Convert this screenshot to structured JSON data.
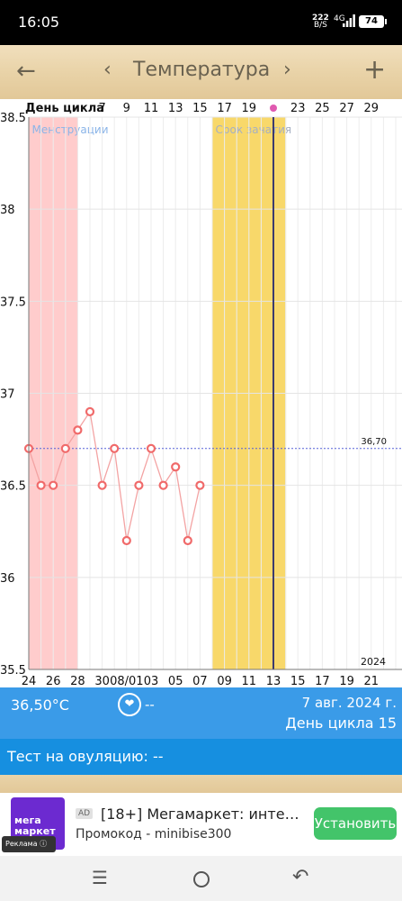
{
  "status_bar": {
    "time": "16:05",
    "net_speed_value": "222",
    "net_speed_unit": "B/S",
    "network": "4G",
    "battery": "74"
  },
  "app_bar": {
    "title": "Температура",
    "back_icon": "arrow-left-icon",
    "prev_icon": "chevron-left-icon",
    "next_icon": "chevron-right-icon",
    "add_icon": "plus-icon"
  },
  "chart_data": {
    "type": "line",
    "top_axis_label": "День цикла",
    "cycle_day_ticks": [
      "7",
      "9",
      "11",
      "13",
      "15",
      "17",
      "19",
      "",
      "23",
      "25",
      "27",
      "29"
    ],
    "x_date_ticks": [
      "24",
      "26",
      "28",
      "30",
      "08/01",
      "03",
      "05",
      "07",
      "09",
      "11",
      "13",
      "15",
      "17",
      "19",
      "21"
    ],
    "y_ticks": [
      "38.5",
      "38",
      "37.5",
      "37",
      "36.5",
      "36",
      "35.5"
    ],
    "ylim": [
      35.5,
      38.5
    ],
    "year_label": "2024",
    "reference_line": {
      "value": 36.7,
      "label": "36,70",
      "color": "#5560d8"
    },
    "zones": [
      {
        "label": "Менструации",
        "from_day": 1,
        "to_day": 5,
        "color": "#ffcccc"
      },
      {
        "label": "Срок зачатия",
        "from_day": 16,
        "to_day": 22,
        "color": "#f8d86a"
      }
    ],
    "ovulation_day": 21,
    "series": [
      {
        "color": "#f06a6a",
        "x_days": [
          1,
          2,
          3,
          4,
          5,
          6,
          7,
          8,
          9,
          10,
          11,
          12,
          13,
          14,
          15
        ],
        "values": [
          36.7,
          36.5,
          36.5,
          36.7,
          36.8,
          36.9,
          36.5,
          36.7,
          36.2,
          36.5,
          36.7,
          36.5,
          36.6,
          36.2,
          36.5
        ]
      }
    ]
  },
  "info": {
    "temperature": "36,50°C",
    "heart_icon": "heart-icon",
    "heart_value": "--",
    "date": "7 авг. 2024 г.",
    "cycle_day": "День цикла 15"
  },
  "ovulation_test": {
    "text": "Тест на овуляцию: --"
  },
  "ad": {
    "logo_line1": "мега",
    "logo_line2": "маркет",
    "badge": "AD",
    "headline": "[18+] Мегамаркет: интерн...",
    "subtext": "Промокод - minibise300",
    "reklama": "Реклама",
    "install_label": "Установить"
  },
  "nav": {
    "menu_icon": "menu-icon",
    "home_icon": "home-icon",
    "back_icon": "back-icon"
  }
}
